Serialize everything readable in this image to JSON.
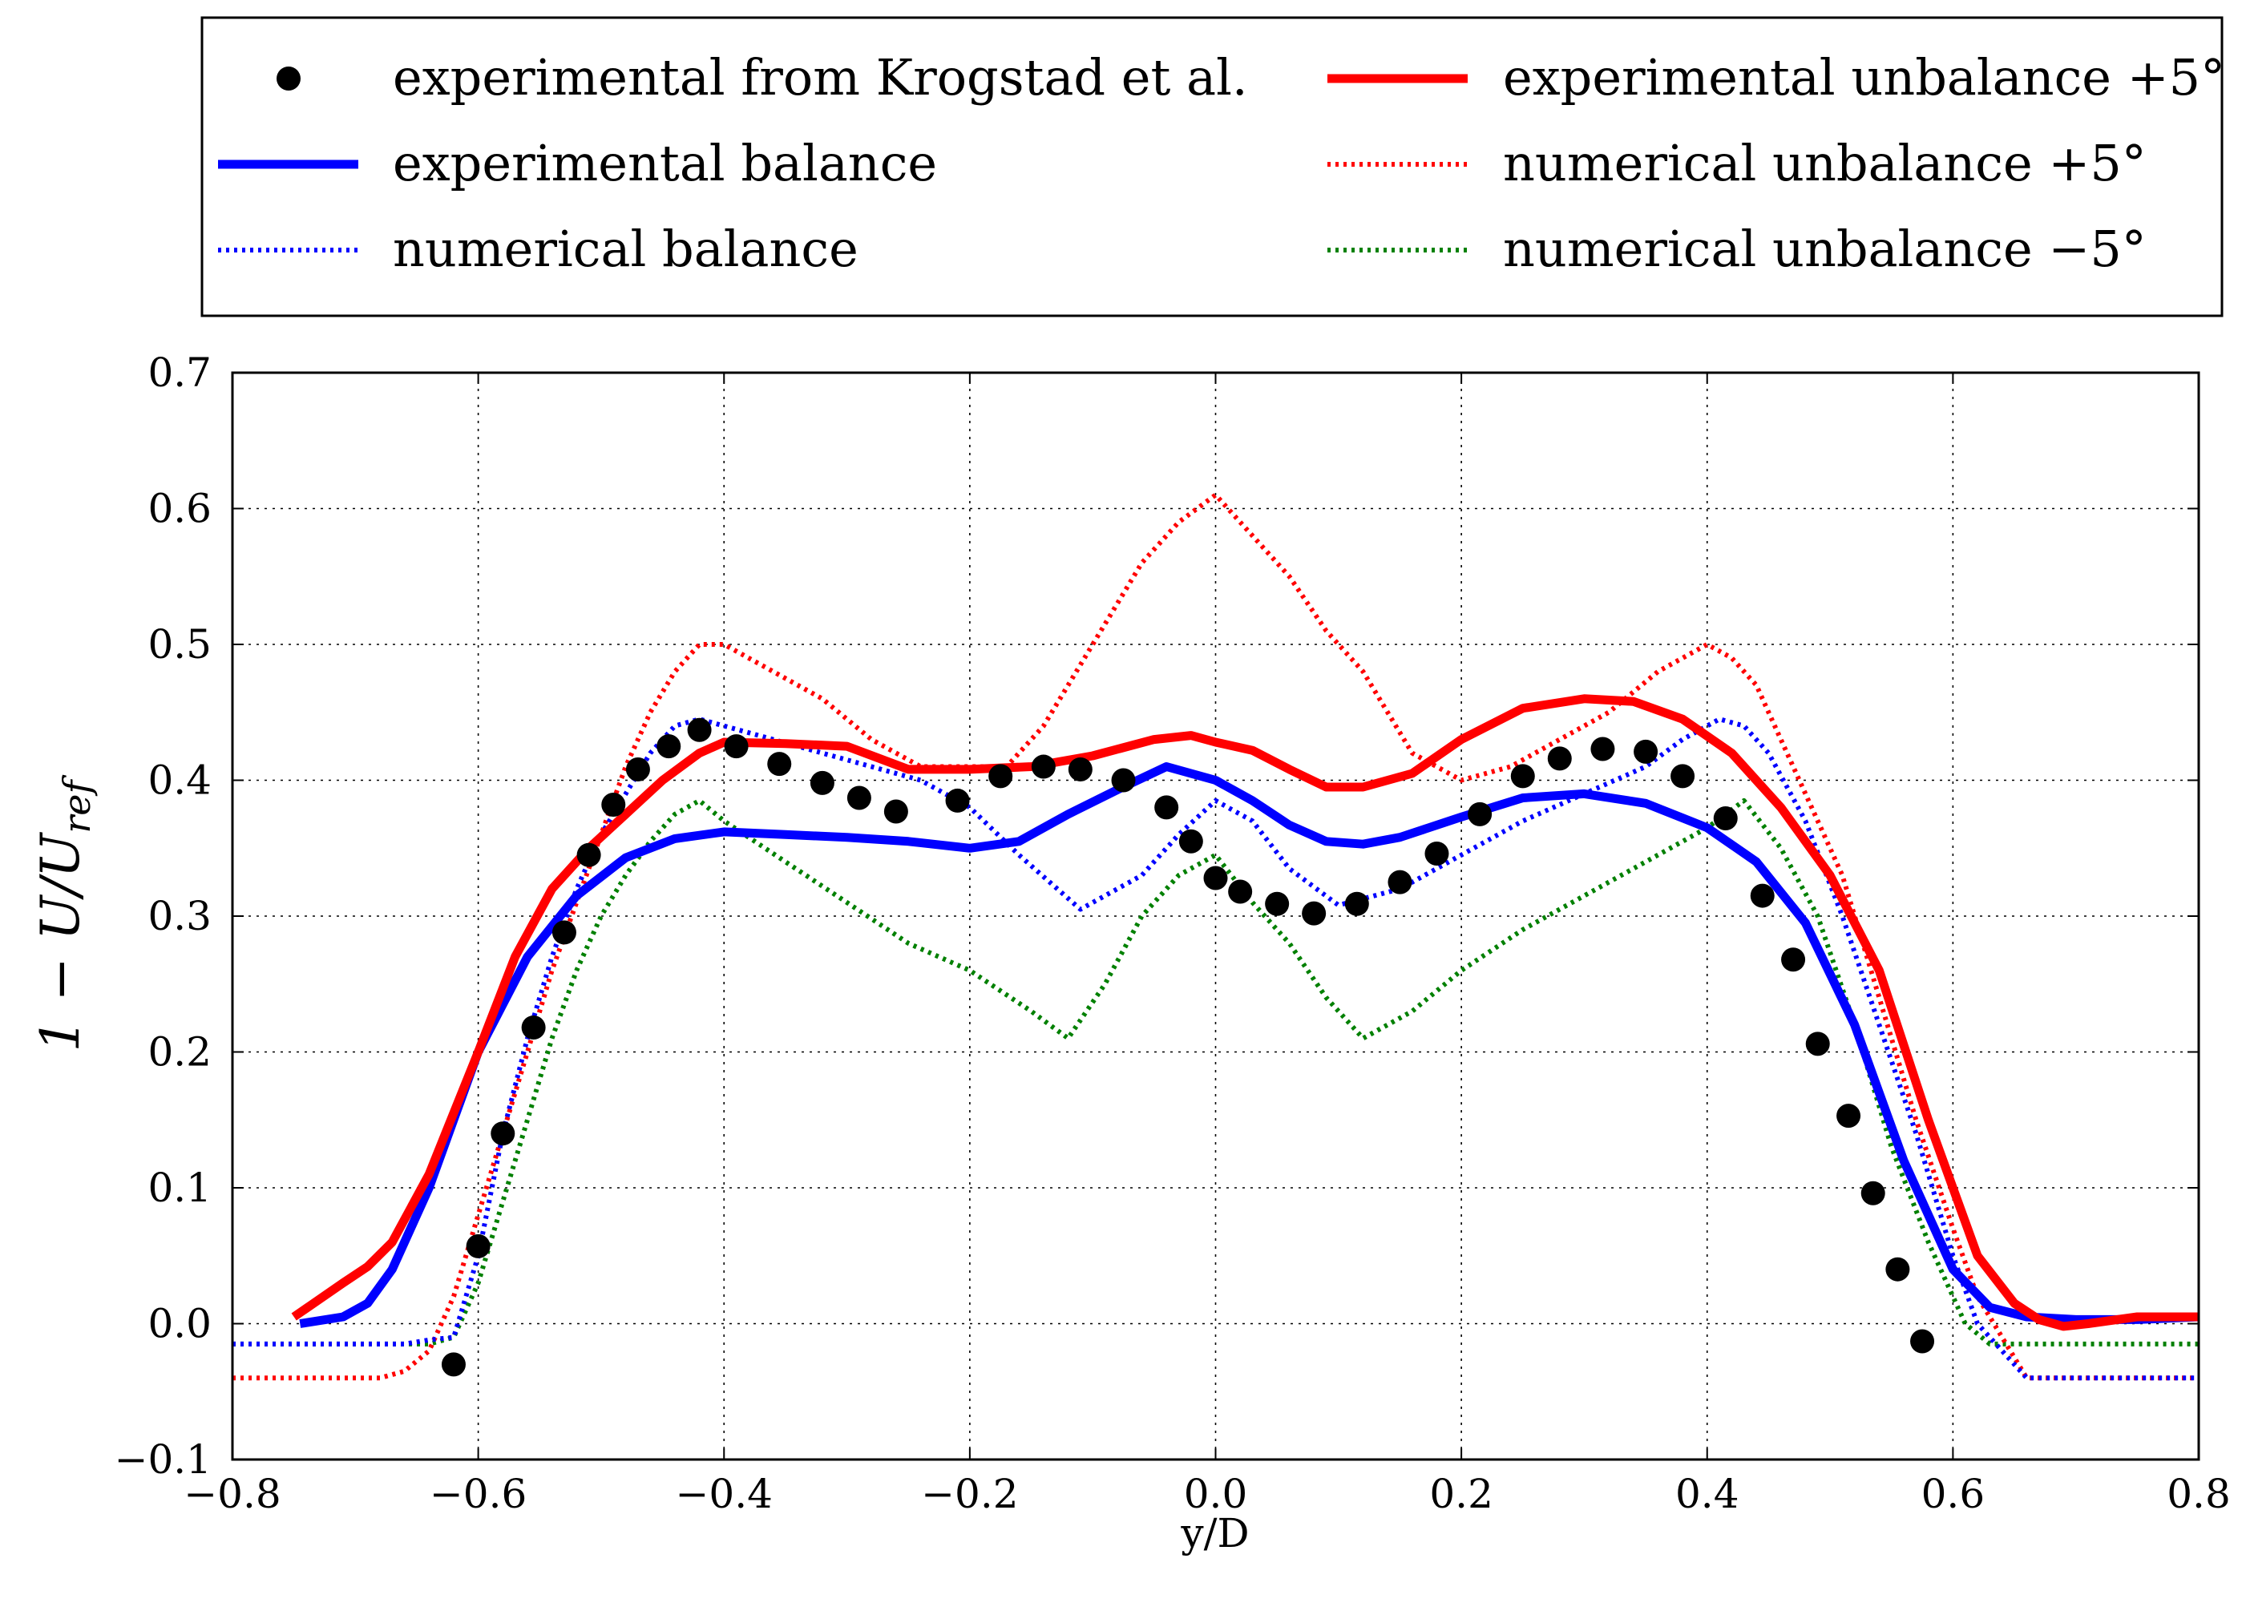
{
  "chart_data": {
    "type": "line",
    "title": "",
    "xlabel": "y/D",
    "ylabel": {
      "main": "1 − U/U",
      "subscript": "ref"
    },
    "xlim": [
      -0.8,
      0.8
    ],
    "ylim": [
      -0.1,
      0.7
    ],
    "xticks": [
      -0.8,
      -0.6,
      -0.4,
      -0.2,
      0.0,
      0.2,
      0.4,
      0.6,
      0.8
    ],
    "xtick_labels": [
      "−0.8",
      "−0.6",
      "−0.4",
      "−0.2",
      "0.0",
      "0.2",
      "0.4",
      "0.6",
      "0.8"
    ],
    "yticks": [
      -0.1,
      0.0,
      0.1,
      0.2,
      0.3,
      0.4,
      0.5,
      0.6,
      0.7
    ],
    "ytick_labels": [
      "−0.1",
      "0.0",
      "0.1",
      "0.2",
      "0.3",
      "0.4",
      "0.5",
      "0.6",
      "0.7"
    ],
    "grid": true,
    "legend_position": "above plot, two columns",
    "series": [
      {
        "name": "experimental from Krogstad et al.",
        "style": "markers",
        "color": "#000000",
        "column": 0,
        "x": [
          -0.62,
          -0.6,
          -0.58,
          -0.555,
          -0.53,
          -0.51,
          -0.49,
          -0.47,
          -0.445,
          -0.42,
          -0.39,
          -0.355,
          -0.32,
          -0.29,
          -0.26,
          -0.21,
          -0.175,
          -0.14,
          -0.11,
          -0.075,
          -0.04,
          -0.02,
          0.0,
          0.02,
          0.05,
          0.08,
          0.115,
          0.15,
          0.18,
          0.215,
          0.25,
          0.28,
          0.315,
          0.35,
          0.38,
          0.415,
          0.445,
          0.47,
          0.49,
          0.515,
          0.535,
          0.555,
          0.575
        ],
        "y": [
          -0.03,
          0.057,
          0.14,
          0.218,
          0.288,
          0.345,
          0.382,
          0.408,
          0.425,
          0.437,
          0.425,
          0.412,
          0.398,
          0.387,
          0.377,
          0.385,
          0.403,
          0.41,
          0.408,
          0.4,
          0.38,
          0.355,
          0.328,
          0.318,
          0.309,
          0.302,
          0.309,
          0.325,
          0.346,
          0.375,
          0.403,
          0.416,
          0.423,
          0.421,
          0.403,
          0.372,
          0.315,
          0.268,
          0.206,
          0.153,
          0.096,
          0.04,
          -0.013
        ]
      },
      {
        "name": "experimental balance",
        "style": "solid",
        "color": "#0000ff",
        "column": 0,
        "x": [
          -0.745,
          -0.71,
          -0.69,
          -0.67,
          -0.64,
          -0.6,
          -0.56,
          -0.52,
          -0.48,
          -0.44,
          -0.4,
          -0.35,
          -0.3,
          -0.25,
          -0.2,
          -0.16,
          -0.12,
          -0.08,
          -0.04,
          -0.02,
          0.0,
          0.03,
          0.06,
          0.09,
          0.12,
          0.15,
          0.2,
          0.25,
          0.3,
          0.35,
          0.4,
          0.44,
          0.48,
          0.52,
          0.56,
          0.6,
          0.63,
          0.66,
          0.7,
          0.75,
          0.8
        ],
        "y": [
          0.0,
          0.005,
          0.015,
          0.04,
          0.1,
          0.2,
          0.27,
          0.315,
          0.343,
          0.357,
          0.362,
          0.36,
          0.358,
          0.355,
          0.35,
          0.355,
          0.375,
          0.393,
          0.41,
          0.405,
          0.4,
          0.385,
          0.367,
          0.355,
          0.353,
          0.358,
          0.373,
          0.387,
          0.39,
          0.383,
          0.365,
          0.34,
          0.295,
          0.22,
          0.12,
          0.04,
          0.012,
          0.005,
          0.003,
          0.003,
          0.005
        ]
      },
      {
        "name": "numerical balance",
        "style": "dotted",
        "color": "#0000ff",
        "column": 0,
        "x": [
          -0.8,
          -0.66,
          -0.64,
          -0.62,
          -0.6,
          -0.58,
          -0.56,
          -0.54,
          -0.52,
          -0.5,
          -0.48,
          -0.46,
          -0.44,
          -0.42,
          -0.4,
          -0.36,
          -0.32,
          -0.28,
          -0.24,
          -0.2,
          -0.16,
          -0.11,
          -0.06,
          -0.03,
          0.0,
          0.03,
          0.06,
          0.1,
          0.15,
          0.2,
          0.25,
          0.3,
          0.35,
          0.38,
          0.41,
          0.43,
          0.45,
          0.48,
          0.51,
          0.54,
          0.57,
          0.6,
          0.62,
          0.64,
          0.66,
          0.8
        ],
        "y": [
          -0.015,
          -0.015,
          -0.012,
          -0.01,
          0.05,
          0.14,
          0.21,
          0.27,
          0.32,
          0.36,
          0.39,
          0.42,
          0.44,
          0.445,
          0.44,
          0.43,
          0.42,
          0.41,
          0.4,
          0.38,
          0.345,
          0.305,
          0.33,
          0.36,
          0.385,
          0.37,
          0.335,
          0.308,
          0.32,
          0.345,
          0.37,
          0.39,
          0.41,
          0.43,
          0.445,
          0.44,
          0.42,
          0.37,
          0.3,
          0.22,
          0.14,
          0.05,
          0.0,
          -0.02,
          -0.04,
          -0.04
        ]
      },
      {
        "name": "experimental unbalance +5°",
        "style": "solid",
        "color": "#ff0000",
        "column": 1,
        "x": [
          -0.75,
          -0.71,
          -0.69,
          -0.67,
          -0.64,
          -0.6,
          -0.57,
          -0.54,
          -0.51,
          -0.48,
          -0.45,
          -0.42,
          -0.4,
          -0.35,
          -0.3,
          -0.25,
          -0.2,
          -0.15,
          -0.1,
          -0.05,
          -0.02,
          0.0,
          0.03,
          0.06,
          0.09,
          0.12,
          0.16,
          0.2,
          0.25,
          0.3,
          0.34,
          0.38,
          0.42,
          0.46,
          0.5,
          0.54,
          0.58,
          0.62,
          0.65,
          0.67,
          0.69,
          0.71,
          0.75,
          0.8
        ],
        "y": [
          0.005,
          0.03,
          0.042,
          0.06,
          0.11,
          0.2,
          0.27,
          0.32,
          0.35,
          0.375,
          0.4,
          0.42,
          0.428,
          0.427,
          0.425,
          0.408,
          0.408,
          0.41,
          0.418,
          0.43,
          0.433,
          0.428,
          0.422,
          0.408,
          0.395,
          0.395,
          0.405,
          0.43,
          0.453,
          0.46,
          0.458,
          0.445,
          0.42,
          0.38,
          0.33,
          0.26,
          0.15,
          0.05,
          0.015,
          0.003,
          -0.002,
          0.0,
          0.005,
          0.005
        ]
      },
      {
        "name": "numerical unbalance +5°",
        "style": "dotted",
        "color": "#ff0000",
        "column": 1,
        "x": [
          -0.8,
          -0.68,
          -0.66,
          -0.64,
          -0.62,
          -0.6,
          -0.58,
          -0.56,
          -0.54,
          -0.52,
          -0.5,
          -0.48,
          -0.46,
          -0.44,
          -0.42,
          -0.4,
          -0.36,
          -0.32,
          -0.28,
          -0.24,
          -0.2,
          -0.17,
          -0.14,
          -0.1,
          -0.06,
          -0.03,
          0.0,
          0.03,
          0.06,
          0.09,
          0.12,
          0.16,
          0.2,
          0.24,
          0.28,
          0.32,
          0.36,
          0.4,
          0.42,
          0.44,
          0.46,
          0.48,
          0.51,
          0.54,
          0.57,
          0.6,
          0.62,
          0.64,
          0.66,
          0.8
        ],
        "y": [
          -0.04,
          -0.04,
          -0.035,
          -0.02,
          0.02,
          0.08,
          0.14,
          0.2,
          0.26,
          0.31,
          0.36,
          0.41,
          0.45,
          0.48,
          0.5,
          0.5,
          0.48,
          0.46,
          0.43,
          0.41,
          0.41,
          0.41,
          0.44,
          0.5,
          0.56,
          0.59,
          0.61,
          0.58,
          0.55,
          0.51,
          0.48,
          0.42,
          0.4,
          0.41,
          0.43,
          0.45,
          0.48,
          0.5,
          0.49,
          0.47,
          0.43,
          0.39,
          0.33,
          0.24,
          0.15,
          0.07,
          0.02,
          -0.01,
          -0.04,
          -0.04
        ]
      },
      {
        "name": "numerical unbalance −5°",
        "style": "dotted",
        "color": "#008000",
        "column": 1,
        "x": [
          -0.8,
          -0.64,
          -0.62,
          -0.6,
          -0.58,
          -0.56,
          -0.54,
          -0.52,
          -0.5,
          -0.48,
          -0.46,
          -0.44,
          -0.42,
          -0.4,
          -0.35,
          -0.3,
          -0.25,
          -0.2,
          -0.15,
          -0.12,
          -0.09,
          -0.06,
          -0.03,
          0.0,
          0.03,
          0.06,
          0.09,
          0.12,
          0.16,
          0.2,
          0.25,
          0.3,
          0.35,
          0.4,
          0.43,
          0.46,
          0.49,
          0.52,
          0.55,
          0.58,
          0.61,
          0.63,
          0.65,
          0.8
        ],
        "y": [
          -0.015,
          -0.015,
          -0.01,
          0.03,
          0.09,
          0.15,
          0.21,
          0.26,
          0.3,
          0.33,
          0.355,
          0.375,
          0.385,
          0.37,
          0.34,
          0.31,
          0.28,
          0.26,
          0.23,
          0.21,
          0.25,
          0.3,
          0.33,
          0.345,
          0.31,
          0.28,
          0.24,
          0.21,
          0.23,
          0.26,
          0.29,
          0.315,
          0.34,
          0.365,
          0.385,
          0.35,
          0.3,
          0.22,
          0.13,
          0.06,
          0.0,
          -0.015,
          -0.015,
          -0.015
        ]
      }
    ]
  }
}
